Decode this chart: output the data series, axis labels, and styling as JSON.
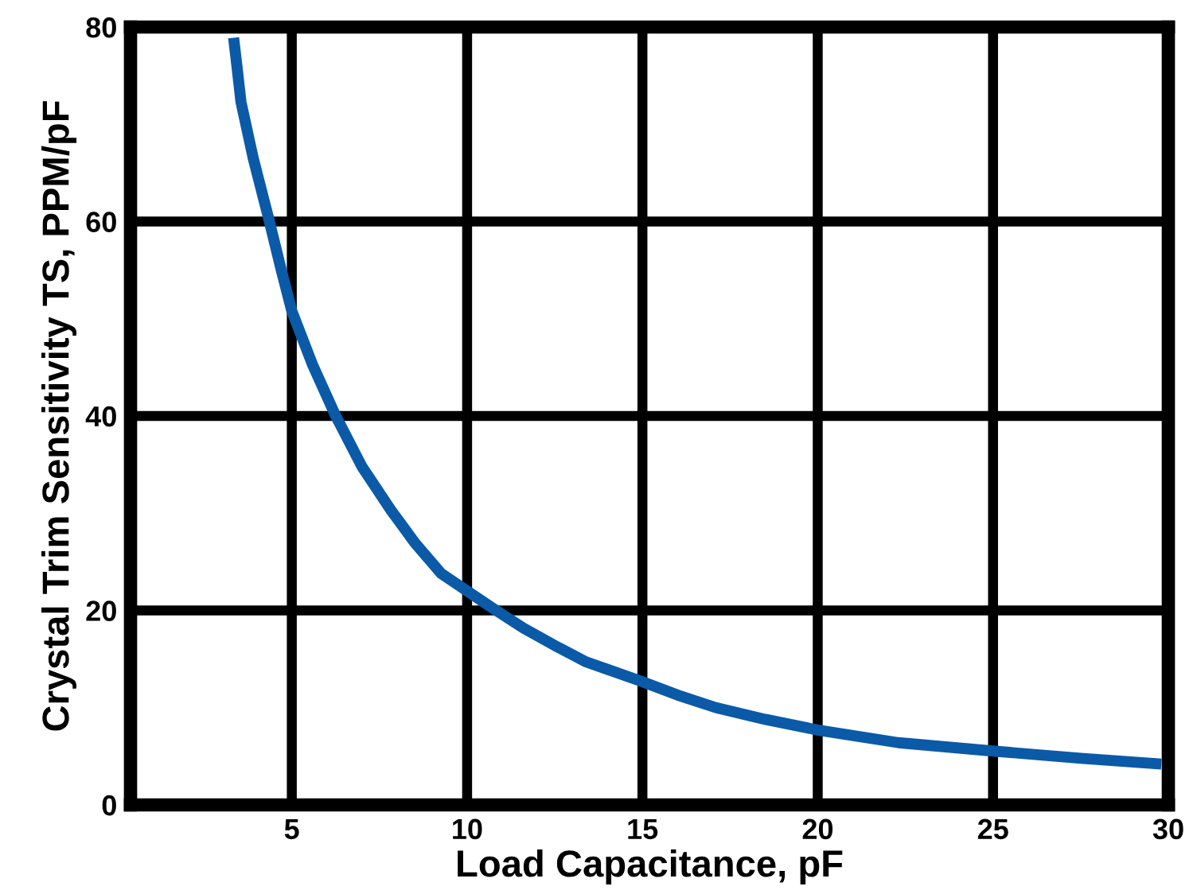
{
  "chart_data": {
    "type": "line",
    "xlabel": "Load Capacitance, pF",
    "ylabel": "Crystal Trim Sensitivity TS, PPM/pF",
    "xlim": [
      0.4,
      30
    ],
    "ylim": [
      0,
      80
    ],
    "xticks": [
      5,
      10,
      15,
      20,
      25,
      30
    ],
    "yticks": [
      0,
      20,
      40,
      60,
      80
    ],
    "grid": true,
    "marker": "none",
    "line_style": "solid",
    "series": [
      {
        "color": "#0a5aa8",
        "x": [
          3.34,
          3.45,
          3.55,
          3.9,
          4.34,
          4.7,
          5,
          5.6,
          6.24,
          7,
          7.83,
          8.5,
          9.26,
          10,
          10.7,
          11.6,
          12.6,
          13.4,
          14.9,
          16,
          17.1,
          18.5,
          20,
          22.3,
          24.8,
          27.5,
          29.8
        ],
        "values": [
          78.9,
          75.5,
          72.3,
          66.5,
          60.3,
          55,
          50.8,
          45.2,
          40.1,
          34.8,
          30.3,
          27,
          23.8,
          22,
          20.3,
          18.2,
          16.2,
          14.7,
          12.8,
          11.3,
          10,
          8.8,
          7.7,
          6.4,
          5.6,
          4.8,
          4.2
        ]
      }
    ]
  }
}
